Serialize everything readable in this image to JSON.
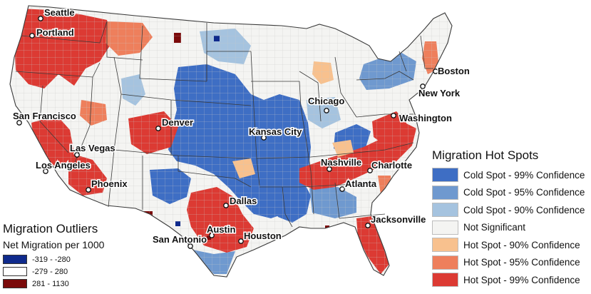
{
  "colors": {
    "cold99": "#3e6ec4",
    "cold95": "#6f99cf",
    "cold90": "#a5c3df",
    "not_significant": "#f4f4f2",
    "hot90": "#f8c18e",
    "hot95": "#ee7f5c",
    "hot99": "#dc3a33",
    "outlier_low": "#0f2a8c",
    "outlier_mid": "#ffffff",
    "outlier_high": "#7b0a0a",
    "state_border": "#3a3a3a"
  },
  "cities": [
    {
      "name": "Seattle"
    },
    {
      "name": "Portland"
    },
    {
      "name": "San Francisco"
    },
    {
      "name": "Las Vegas"
    },
    {
      "name": "Los Angeles"
    },
    {
      "name": "Phoenix"
    },
    {
      "name": "Denver"
    },
    {
      "name": "San Antonio"
    },
    {
      "name": "Austin"
    },
    {
      "name": "Houston"
    },
    {
      "name": "Dallas"
    },
    {
      "name": "Kansas City"
    },
    {
      "name": "Chicago"
    },
    {
      "name": "Nashville"
    },
    {
      "name": "Atlanta"
    },
    {
      "name": "Charlotte"
    },
    {
      "name": "Washington"
    },
    {
      "name": "New York"
    },
    {
      "name": "Boston"
    },
    {
      "name": "Jacksonville"
    }
  ],
  "hotspot_legend": {
    "title": "Migration Hot Spots",
    "items": [
      {
        "label": "Cold Spot - 99% Confidence",
        "color": "#3e6ec4"
      },
      {
        "label": "Cold Spot - 95% Confidence",
        "color": "#6f99cf"
      },
      {
        "label": "Cold Spot - 90% Confidence",
        "color": "#a5c3df"
      },
      {
        "label": "Not Significant",
        "color": "#f4f4f2"
      },
      {
        "label": "Hot Spot - 90% Confidence",
        "color": "#f8c18e"
      },
      {
        "label": "Hot Spot - 95% Confidence",
        "color": "#ee7f5c"
      },
      {
        "label": "Hot Spot - 99% Confidence",
        "color": "#dc3a33"
      }
    ]
  },
  "outlier_legend": {
    "title": "Migration Outliers",
    "subtitle": "Net Migration per 1000",
    "items": [
      {
        "label": "-319 - -280",
        "color": "#0f2a8c"
      },
      {
        "label": "-279 - 280",
        "color": "#ffffff"
      },
      {
        "label": "281 - 1130",
        "color": "#7b0a0a"
      }
    ]
  }
}
